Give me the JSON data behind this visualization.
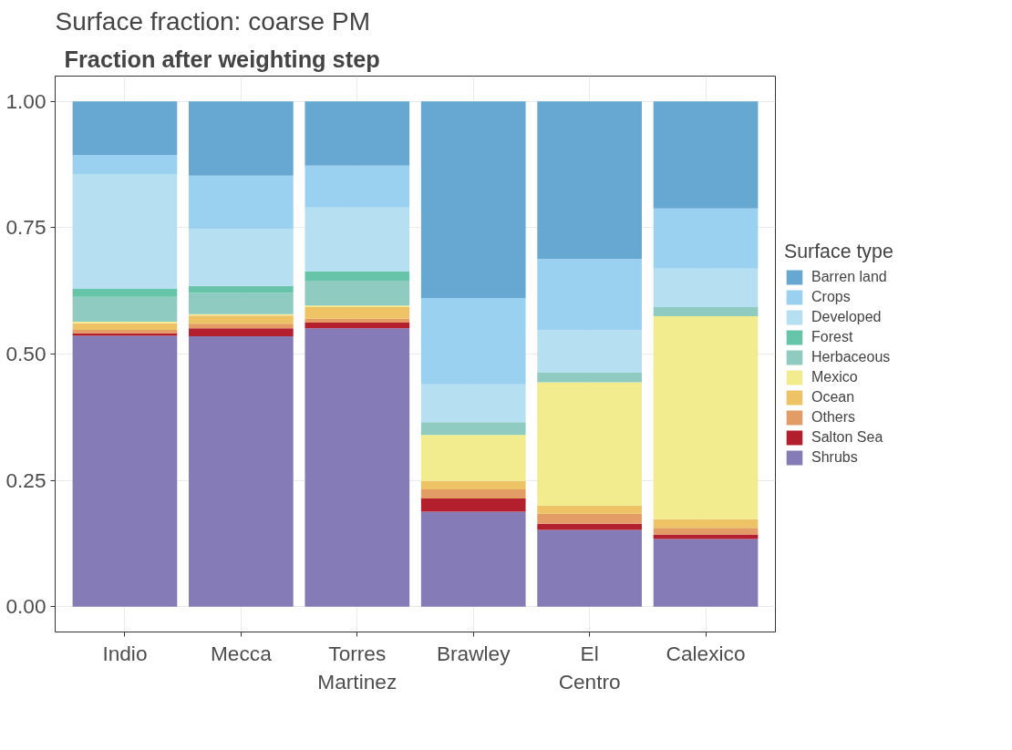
{
  "chart_data": {
    "type": "bar",
    "title": "Surface fraction: coarse PM",
    "subtitle": "Fraction after weighting step",
    "categories": [
      "Indio",
      "Mecca",
      "Torres\nMartinez",
      "Brawley",
      "El\nCentro",
      "Calexico"
    ],
    "stacked": true,
    "legend_title": "Surface type",
    "legend": "right",
    "grid": true,
    "ylim": [
      -0.05,
      1.05
    ],
    "yticks": [
      {
        "value": 0,
        "label": "0.00"
      },
      {
        "value": 0.25,
        "label": "0.25"
      },
      {
        "value": 0.5,
        "label": "0.50"
      },
      {
        "value": 0.75,
        "label": "0.75"
      },
      {
        "value": 1,
        "label": "1.00"
      }
    ],
    "series": [
      {
        "name": "Shrubs",
        "color": "#857bb6",
        "values": [
          0.536,
          0.535,
          0.551,
          0.188,
          0.152,
          0.134
        ]
      },
      {
        "name": "Salton Sea",
        "color": "#b41f2e",
        "values": [
          0.005,
          0.016,
          0.011,
          0.026,
          0.012,
          0.009
        ]
      },
      {
        "name": "Others",
        "color": "#e49c66",
        "values": [
          0.007,
          0.009,
          0.008,
          0.018,
          0.02,
          0.013
        ]
      },
      {
        "name": "Ocean",
        "color": "#eec366",
        "values": [
          0.013,
          0.016,
          0.023,
          0.017,
          0.016,
          0.017
        ]
      },
      {
        "name": "Mexico",
        "color": "#f2ec8f",
        "values": [
          0.003,
          0.003,
          0.003,
          0.091,
          0.244,
          0.402
        ]
      },
      {
        "name": "Herbaceous",
        "color": "#8fcbc0",
        "values": [
          0.049,
          0.042,
          0.049,
          0.025,
          0.019,
          0.018
        ]
      },
      {
        "name": "Forest",
        "color": "#66c5a9",
        "values": [
          0.016,
          0.014,
          0.018,
          0,
          0,
          0
        ]
      },
      {
        "name": "Developed",
        "color": "#b7dff2",
        "values": [
          0.227,
          0.112,
          0.127,
          0.075,
          0.084,
          0.076
        ]
      },
      {
        "name": "Crops",
        "color": "#9bd1f0",
        "values": [
          0.038,
          0.106,
          0.083,
          0.171,
          0.141,
          0.119
        ]
      },
      {
        "name": "Barren land",
        "color": "#66a8d1",
        "values": [
          0.106,
          0.147,
          0.127,
          0.389,
          0.312,
          0.212
        ]
      }
    ]
  }
}
